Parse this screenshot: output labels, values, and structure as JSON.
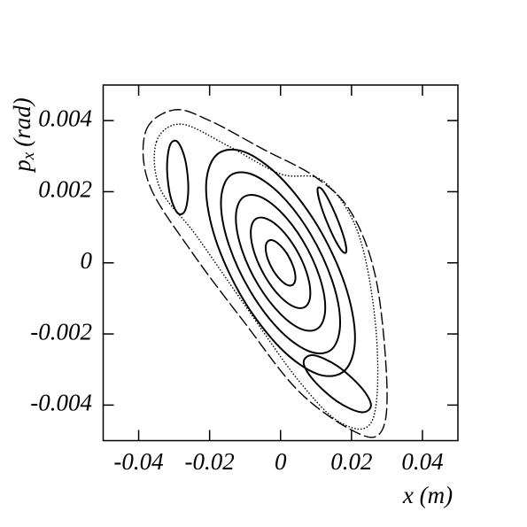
{
  "chart_data": {
    "type": "line",
    "xlabel": "x (m)",
    "ylabel": "p",
    "ylabel_sub": "x",
    "ylabel_unit": "(rad)",
    "xlim": [
      -0.05,
      0.05
    ],
    "xticks": [
      -0.04,
      -0.02,
      0,
      0.02,
      0.04
    ],
    "ylim": [
      -0.005,
      0.005
    ],
    "yticks": [
      -0.004,
      -0.002,
      0,
      0.002,
      0.004
    ],
    "series": [
      {
        "color": "#000000",
        "style": "solid",
        "x": [
          0.021,
          0.01819,
          0.0105,
          0,
          -0.0105,
          -0.01819,
          -0.021,
          -0.01819,
          -0.0105,
          0,
          0.0105,
          0.01819
        ],
        "values": [
          -0.0021,
          -0.00062,
          0.00103,
          0.0024,
          0.00313,
          0.00302,
          0.0021,
          0.00062,
          -0.00103,
          -0.0024,
          -0.00313,
          -0.00302
        ]
      },
      {
        "color": "#000000",
        "style": "solid",
        "x": [
          0.0168,
          0.01455,
          0.0084,
          0,
          -0.0084,
          -0.01455,
          -0.0168,
          -0.01455,
          -0.0084,
          0,
          0.0084,
          0.01455
        ],
        "values": [
          -0.00168,
          -0.0005,
          0.00082,
          0.00192,
          0.0025,
          0.00242,
          0.00168,
          0.0005,
          -0.00082,
          -0.00192,
          -0.0025,
          -0.00242
        ]
      },
      {
        "color": "#000000",
        "style": "solid",
        "x": [
          0.0126,
          0.01091,
          0.0063,
          0,
          -0.0063,
          -0.01091,
          -0.0126,
          -0.01091,
          -0.0063,
          0,
          0.0063,
          0.01091
        ],
        "values": [
          -0.00126,
          -0.00037,
          0.00062,
          0.00144,
          0.00188,
          0.00181,
          0.00126,
          0.00037,
          -0.00062,
          -0.00144,
          -0.00188,
          -0.00181
        ]
      },
      {
        "color": "#000000",
        "style": "solid",
        "x": [
          0.0084,
          0.00728,
          0.0042,
          0,
          -0.0042,
          -0.00728,
          -0.0084,
          -0.00728,
          -0.0042,
          0,
          0.0042,
          0.00728
        ],
        "values": [
          -0.00084,
          -0.00025,
          0.00041,
          0.00096,
          0.00125,
          0.00121,
          0.00084,
          0.00025,
          -0.00041,
          -0.00096,
          -0.00125,
          -0.00121
        ]
      },
      {
        "color": "#000000",
        "style": "solid",
        "x": [
          0.0042,
          0.00364,
          0.0021,
          0,
          -0.0021,
          -0.00364,
          -0.0042,
          -0.00364,
          -0.0021,
          0,
          0.0021,
          0.00364
        ],
        "values": [
          -0.00042,
          -0.00012,
          0.00021,
          0.00048,
          0.00063,
          0.0006,
          0.00042,
          0.00012,
          -0.00021,
          -0.00048,
          -0.00063,
          -0.0006
        ]
      },
      {
        "color": "#000000",
        "style": "solid",
        "x": [
          -0.026,
          -0.02688,
          -0.029,
          -0.03112,
          -0.032,
          -0.03112,
          -0.029,
          -0.02688
        ],
        "values": [
          0.0021,
          0.0029,
          0.0034,
          0.00332,
          0.0027,
          0.0019,
          0.0014,
          0.00148
        ]
      },
      {
        "color": "#000000",
        "style": "solid",
        "x": [
          0.0185,
          0.0179,
          0.0153,
          0.0122,
          0.0105,
          0.0111,
          0.0137,
          0.0168
        ],
        "values": [
          0.0003,
          0.0007,
          0.0014,
          0.002,
          0.0021,
          0.0017,
          0.001,
          0.0004
        ]
      },
      {
        "color": "#000000",
        "style": "solid",
        "x": [
          0.0255,
          0.0227,
          0.016,
          0.0093,
          0.0065,
          0.0093,
          0.016,
          0.0227
        ],
        "values": [
          -0.004,
          -0.0035,
          -0.0029,
          -0.0026,
          -0.0028,
          -0.0033,
          -0.0039,
          -0.0042
        ]
      },
      {
        "color": "#000000",
        "style": "dotted",
        "x": [
          -0.035,
          -0.028,
          -0.015,
          0,
          0.012,
          0.022,
          0.027,
          0.026,
          0.017,
          0.005,
          -0.01,
          -0.024,
          -0.034
        ],
        "values": [
          0.0034,
          0.0039,
          0.0033,
          0.0025,
          0.0023,
          0.0008,
          -0.002,
          -0.0044,
          -0.0045,
          -0.0033,
          -0.0012,
          0.0008,
          0.0021
        ]
      },
      {
        "color": "#000000",
        "style": "dashed",
        "x": [
          -0.038,
          -0.03,
          -0.02,
          -0.005,
          0.01,
          0.02,
          0.027,
          0.03,
          0.028,
          0.02,
          0.005,
          -0.01,
          -0.025,
          -0.037
        ],
        "values": [
          0.0037,
          0.0043,
          0.004,
          0.0032,
          0.0024,
          0.0014,
          -0.0005,
          -0.0035,
          -0.0048,
          -0.0047,
          -0.0036,
          -0.0017,
          0.0003,
          0.0022
        ]
      }
    ]
  }
}
